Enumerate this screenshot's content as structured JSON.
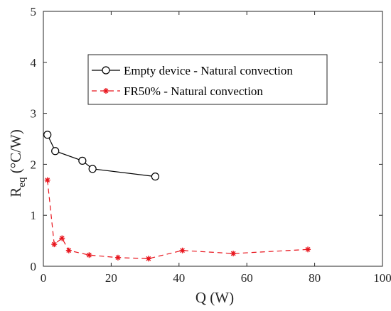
{
  "chart_data": {
    "type": "line",
    "xlabel": "Q (W)",
    "ylabel": {
      "main": "R",
      "sub": "eq",
      "unit": " (°C/W)"
    },
    "xlim": [
      0,
      100
    ],
    "ylim": [
      0,
      5
    ],
    "xticks": [
      0,
      20,
      40,
      60,
      80,
      100
    ],
    "yticks": [
      0,
      1,
      2,
      3,
      4,
      5
    ],
    "grid": false,
    "legend_position": "top-right",
    "series": [
      {
        "name": "Empty device - Natural convection",
        "color": "#000000",
        "line": "solid",
        "marker": "circle",
        "x": [
          1.2,
          3.5,
          11.5,
          14.5,
          33
        ],
        "y": [
          2.58,
          2.26,
          2.07,
          1.91,
          1.76
        ]
      },
      {
        "name": "FR50% - Natural convection",
        "color": "#e8141c",
        "line": "dashed",
        "marker": "asterisk",
        "x": [
          1.2,
          3.2,
          5.5,
          7.5,
          13.5,
          22,
          31,
          41,
          56,
          78
        ],
        "y": [
          1.69,
          0.43,
          0.55,
          0.31,
          0.22,
          0.17,
          0.15,
          0.31,
          0.25,
          0.33
        ]
      }
    ]
  }
}
